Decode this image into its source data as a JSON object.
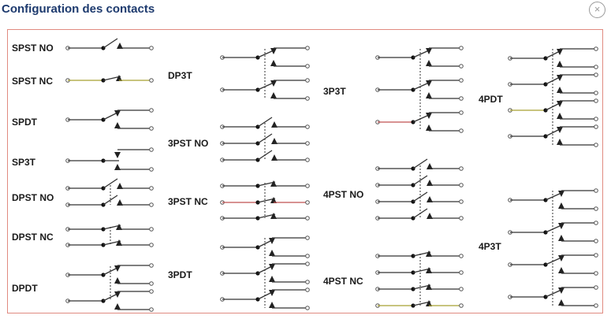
{
  "dialog": {
    "title": "Configuration des contacts",
    "close_icon": "close-icon",
    "close_symbol": "×"
  },
  "contacts": [
    {
      "label": "SPST NO"
    },
    {
      "label": "SPST NC"
    },
    {
      "label": "SPDT"
    },
    {
      "label": "SP3T"
    },
    {
      "label": "DPST NO"
    },
    {
      "label": "DPST NC"
    },
    {
      "label": "DPDT"
    },
    {
      "label": "DP3T"
    },
    {
      "label": "3PST NO"
    },
    {
      "label": "3PST NC"
    },
    {
      "label": "3PDT"
    },
    {
      "label": "3P3T"
    },
    {
      "label": "4PST NO"
    },
    {
      "label": "4PST NC"
    },
    {
      "label": "4PDT"
    },
    {
      "label": "4P3T"
    }
  ],
  "colors": {
    "title": "#1d3a6e",
    "panel_border": "#e08a80",
    "wire": "#333333",
    "wire_accent_red": "#c05050",
    "wire_accent_yellow": "#a8a030"
  }
}
